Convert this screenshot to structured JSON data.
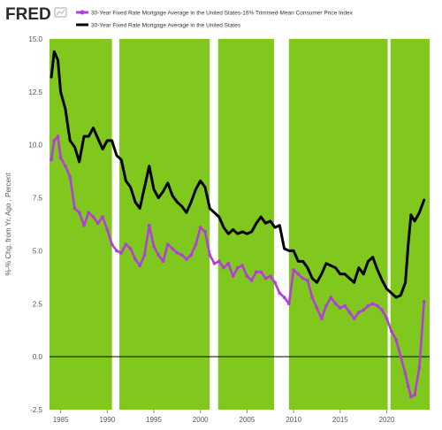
{
  "brand": {
    "logo_text": "FRED"
  },
  "colors": {
    "plot_background": "#ffffff",
    "band_fill": "#80c81e",
    "series_purple": "#b23fd6",
    "series_black": "#000000",
    "zero_line": "#000000"
  },
  "chart_data": {
    "type": "line",
    "title": "",
    "xlabel": "",
    "ylabel": "%-% Chg. from Yr. Ago , Percent",
    "xlim": [
      1983.8,
      2024.6
    ],
    "ylim": [
      -2.5,
      15.0
    ],
    "yticks": [
      "-2.5",
      "0.0",
      "2.5",
      "5.0",
      "7.5",
      "10.0",
      "12.5",
      "15.0"
    ],
    "yticks_values": [
      -2.5,
      0,
      2.5,
      5,
      7.5,
      10,
      12.5,
      15
    ],
    "xticks": [
      "1985",
      "1990",
      "1995",
      "2000",
      "2005",
      "2010",
      "2015",
      "2020"
    ],
    "xticks_values": [
      1985,
      1990,
      1995,
      2000,
      2005,
      2010,
      2015,
      2020
    ],
    "grid": false,
    "legend_position": "top-left",
    "reference_line_y": 0,
    "green_bands": [
      [
        1983.8,
        1990.5
      ],
      [
        1991.3,
        2001.0
      ],
      [
        2001.9,
        2007.9
      ],
      [
        2009.5,
        2020.1
      ],
      [
        2020.4,
        2024.6
      ]
    ],
    "series": [
      {
        "name": "30-Year Fixed Rate Mortgage Average in the United States-16% Trimmed-Mean Consumer Price Index",
        "color": "#b23fd6",
        "marker": "circle",
        "x": [
          1984.0,
          1984.3,
          1984.7,
          1985.0,
          1985.5,
          1986.0,
          1986.5,
          1987.0,
          1987.5,
          1988.0,
          1988.5,
          1989.0,
          1989.5,
          1990.0,
          1990.5,
          1991.0,
          1991.5,
          1992.0,
          1992.5,
          1993.0,
          1993.5,
          1994.0,
          1994.5,
          1995.0,
          1995.5,
          1996.0,
          1996.5,
          1997.0,
          1997.5,
          1998.0,
          1998.5,
          1999.0,
          1999.5,
          2000.0,
          2000.5,
          2001.0,
          2001.5,
          2002.0,
          2002.5,
          2003.0,
          2003.5,
          2004.0,
          2004.5,
          2005.0,
          2005.5,
          2006.0,
          2006.5,
          2007.0,
          2007.5,
          2008.0,
          2008.5,
          2009.0,
          2009.5,
          2010.0,
          2010.5,
          2011.0,
          2011.5,
          2012.0,
          2012.5,
          2013.0,
          2013.5,
          2014.0,
          2014.5,
          2015.0,
          2015.5,
          2016.0,
          2016.5,
          2017.0,
          2017.5,
          2018.0,
          2018.5,
          2019.0,
          2019.5,
          2020.0,
          2020.5,
          2021.0,
          2021.5,
          2022.0,
          2022.3,
          2022.6,
          2023.0,
          2023.5,
          2024.0
        ],
        "y": [
          9.3,
          10.2,
          10.4,
          9.4,
          9.0,
          8.5,
          7.0,
          6.8,
          6.2,
          6.8,
          6.6,
          6.3,
          6.6,
          6.0,
          5.3,
          5.0,
          4.9,
          5.3,
          5.1,
          4.6,
          4.3,
          4.8,
          6.2,
          5.2,
          4.8,
          4.5,
          5.3,
          5.1,
          4.9,
          4.8,
          4.6,
          4.8,
          5.3,
          6.1,
          5.9,
          4.8,
          4.4,
          4.5,
          4.2,
          4.4,
          3.8,
          4.2,
          4.3,
          3.8,
          3.6,
          4.0,
          4.0,
          3.7,
          3.8,
          3.5,
          3.0,
          2.8,
          2.5,
          4.1,
          3.9,
          3.7,
          3.6,
          2.8,
          2.3,
          1.8,
          2.4,
          2.8,
          2.5,
          2.3,
          2.4,
          2.1,
          1.8,
          2.1,
          2.2,
          2.4,
          2.5,
          2.4,
          2.2,
          1.8,
          1.2,
          0.8,
          0.0,
          -0.8,
          -1.4,
          -1.9,
          -1.8,
          -0.5,
          2.6
        ]
      },
      {
        "name": "30-Year Fixed Rate Mortgage Average in the United States",
        "color": "#000000",
        "marker": "none",
        "x": [
          1984.0,
          1984.3,
          1984.7,
          1985.0,
          1985.5,
          1986.0,
          1986.5,
          1987.0,
          1987.5,
          1988.0,
          1988.5,
          1989.0,
          1989.5,
          1990.0,
          1990.5,
          1991.0,
          1991.5,
          1992.0,
          1992.5,
          1993.0,
          1993.5,
          1994.0,
          1994.5,
          1995.0,
          1995.5,
          1996.0,
          1996.5,
          1997.0,
          1997.5,
          1998.0,
          1998.5,
          1999.0,
          1999.5,
          2000.0,
          2000.5,
          2001.0,
          2001.5,
          2002.0,
          2002.5,
          2003.0,
          2003.5,
          2004.0,
          2004.5,
          2005.0,
          2005.5,
          2006.0,
          2006.5,
          2007.0,
          2007.5,
          2008.0,
          2008.5,
          2009.0,
          2009.5,
          2010.0,
          2010.5,
          2011.0,
          2011.5,
          2012.0,
          2012.5,
          2013.0,
          2013.5,
          2014.0,
          2014.5,
          2015.0,
          2015.5,
          2016.0,
          2016.5,
          2017.0,
          2017.5,
          2018.0,
          2018.5,
          2019.0,
          2019.5,
          2020.0,
          2020.5,
          2021.0,
          2021.5,
          2022.0,
          2022.3,
          2022.6,
          2023.0,
          2023.5,
          2024.0
        ],
        "y": [
          13.2,
          14.4,
          14.0,
          12.5,
          11.7,
          10.2,
          9.9,
          9.2,
          10.4,
          10.4,
          10.8,
          10.3,
          9.8,
          10.2,
          10.2,
          9.5,
          9.3,
          8.3,
          8.0,
          7.3,
          7.0,
          8.0,
          9.0,
          7.9,
          7.5,
          7.8,
          8.2,
          7.6,
          7.3,
          7.1,
          6.8,
          7.3,
          7.9,
          8.3,
          8.0,
          7.0,
          6.8,
          6.6,
          6.1,
          5.8,
          6.0,
          5.8,
          5.9,
          5.8,
          5.9,
          6.3,
          6.6,
          6.3,
          6.4,
          6.1,
          6.2,
          5.1,
          5.0,
          5.0,
          4.5,
          4.5,
          4.2,
          3.7,
          3.5,
          3.9,
          4.4,
          4.3,
          4.2,
          3.9,
          3.9,
          3.7,
          3.5,
          4.2,
          3.9,
          4.5,
          4.7,
          4.1,
          3.6,
          3.2,
          3.0,
          2.8,
          2.9,
          3.5,
          5.3,
          6.7,
          6.4,
          6.8,
          7.4
        ]
      }
    ]
  }
}
